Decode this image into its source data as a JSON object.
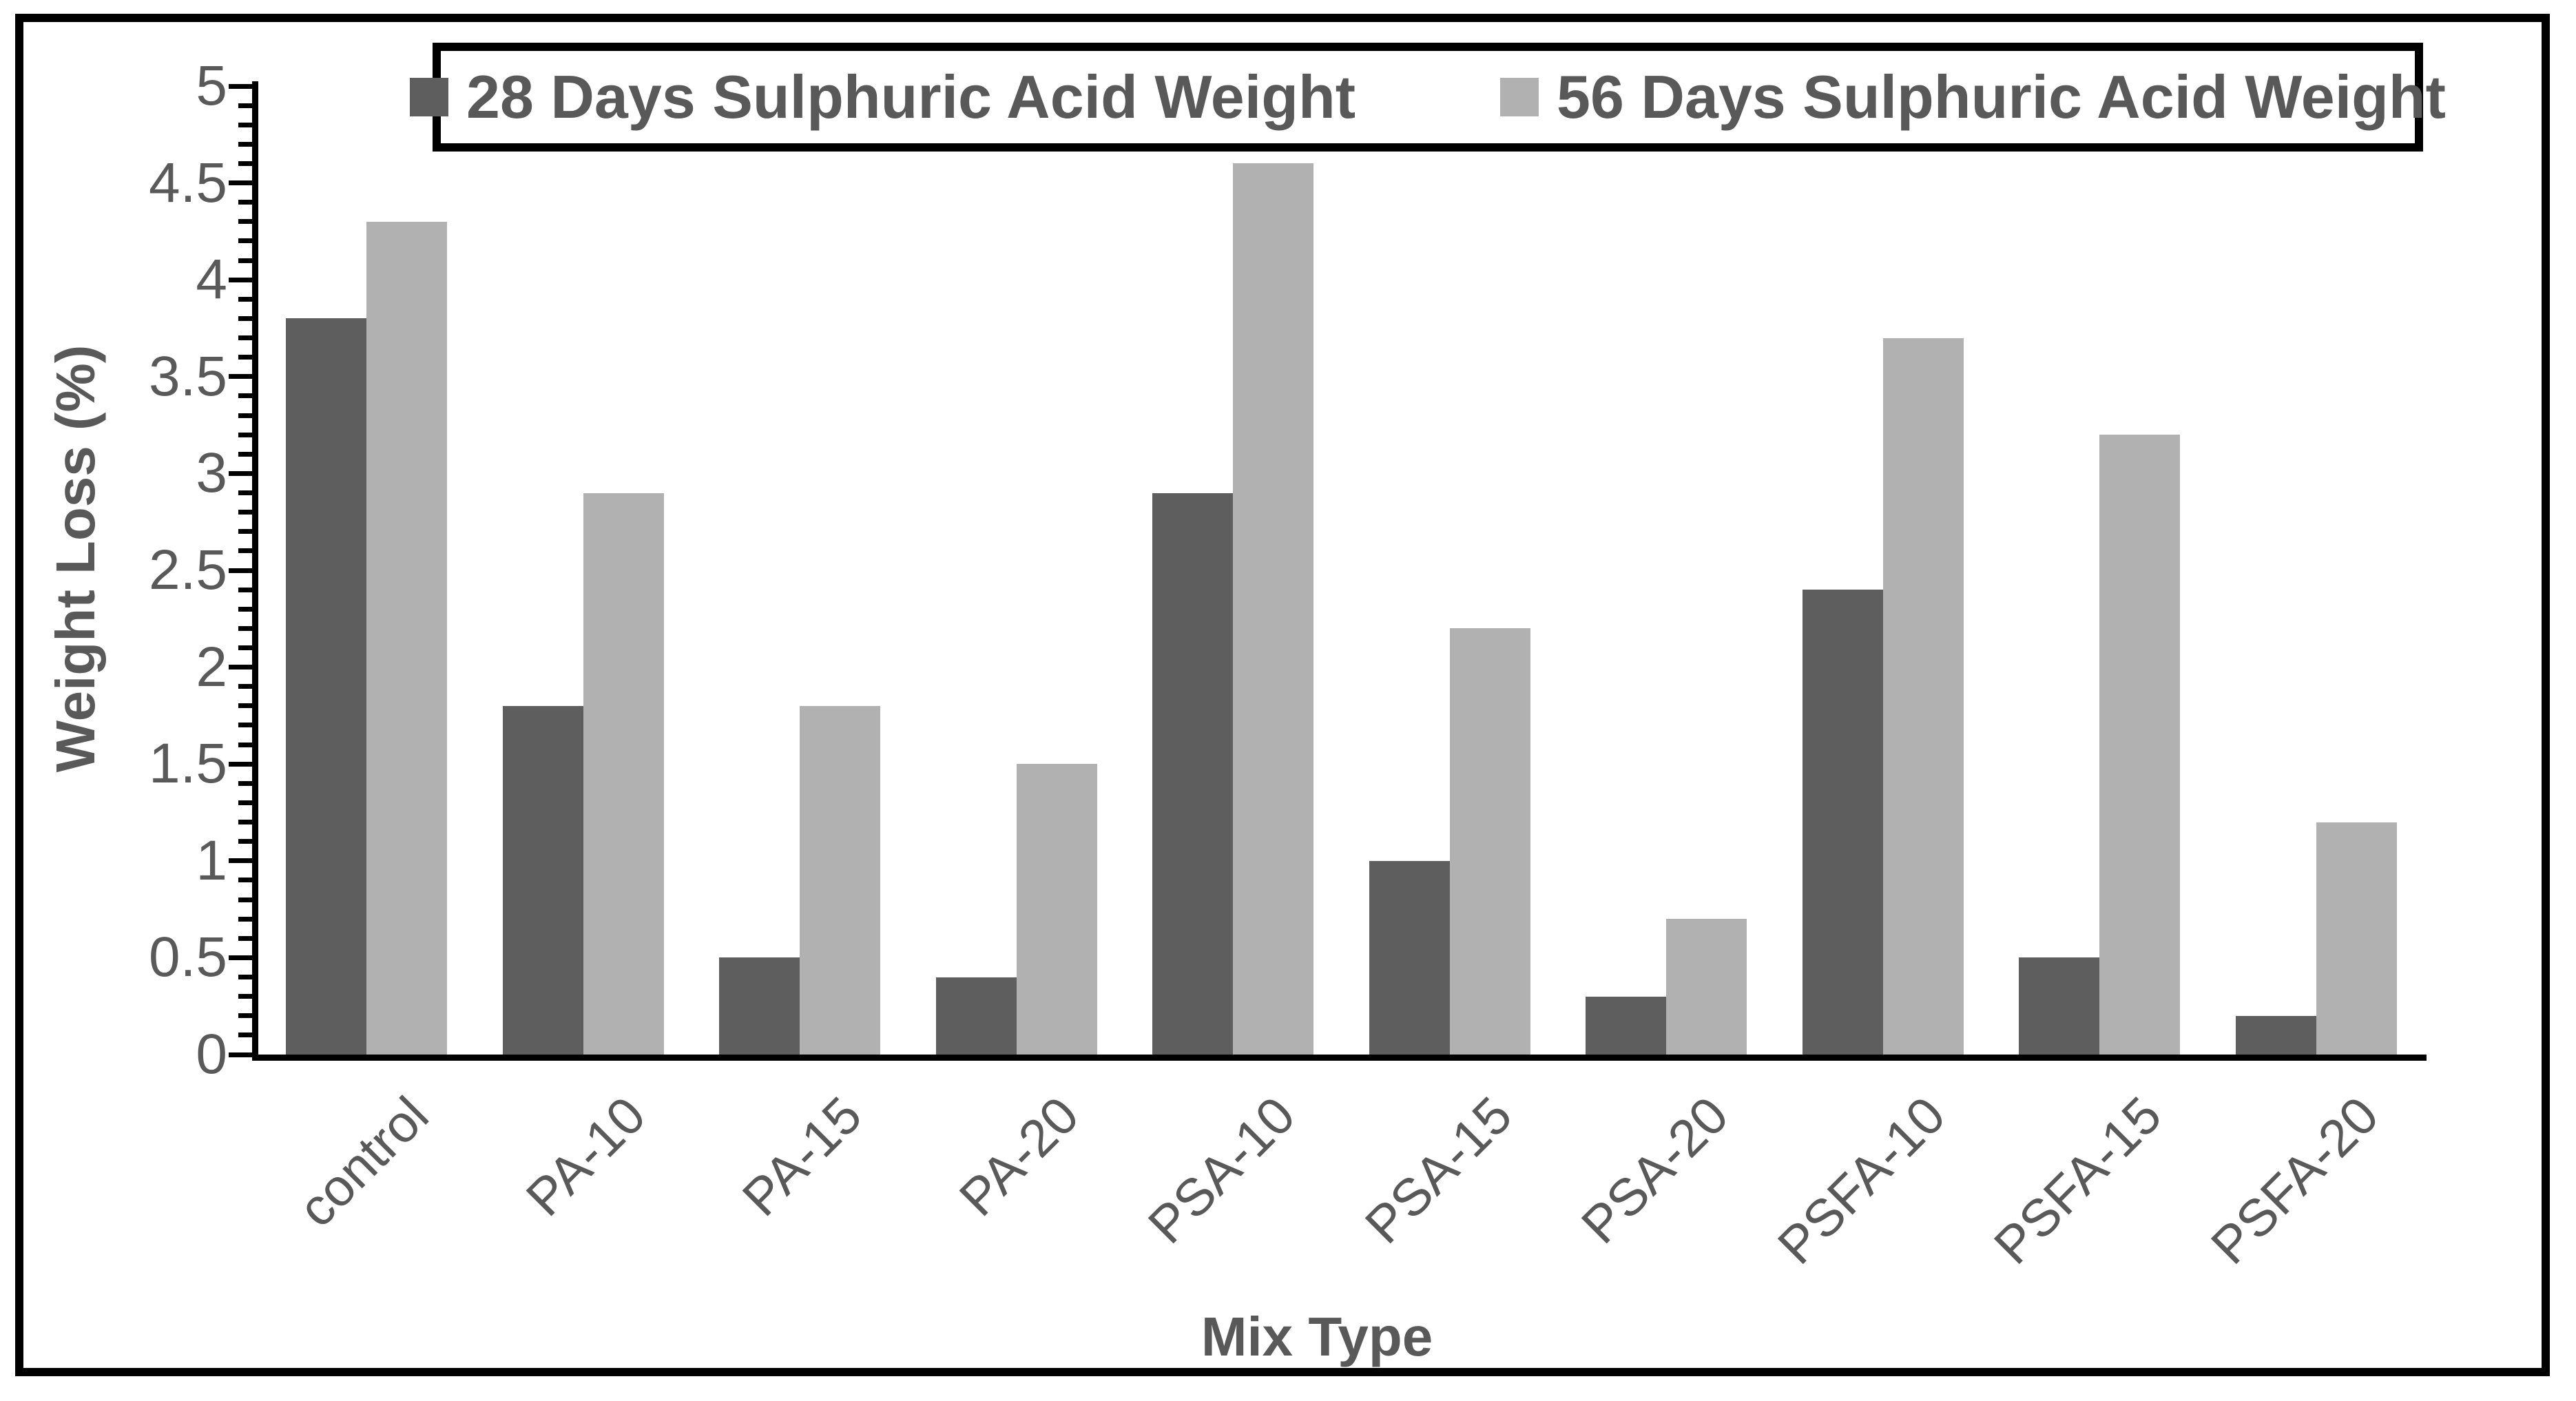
{
  "figure": {
    "background": "#ffffff",
    "border_color": "#000000"
  },
  "legend": {
    "position": "top",
    "items": [
      {
        "label": "28 Days Sulphuric Acid Weight",
        "color": "#5e5e5e"
      },
      {
        "label": "56 Days Sulphuric Acid Weight",
        "color": "#b1b1b1"
      }
    ]
  },
  "chart_data": {
    "type": "bar",
    "title": "",
    "categories": [
      "control",
      "PA-10",
      "PA-15",
      "PA-20",
      "PSA-10",
      "PSA-15",
      "PSA-20",
      "PSFA-10",
      "PSFA-15",
      "PSFA-20"
    ],
    "series": [
      {
        "name": "28 Days Sulphuric Acid Weight",
        "color": "#5e5e5e",
        "values": [
          3.8,
          1.8,
          0.5,
          0.4,
          2.9,
          1.0,
          0.3,
          2.4,
          0.5,
          0.2
        ]
      },
      {
        "name": "56 Days Sulphuric Acid Weight",
        "color": "#b1b1b1",
        "values": [
          4.3,
          2.9,
          1.8,
          1.5,
          4.6,
          2.2,
          0.7,
          3.7,
          3.2,
          1.2
        ]
      }
    ],
    "xlabel": "Mix Type",
    "ylabel": "Weight Loss (%)",
    "ylim": [
      0,
      5
    ],
    "ytick_step": 0.5,
    "minor_tick_step": 0.1,
    "yticklabels": [
      "0",
      "0.5",
      "1",
      "1.5",
      "2",
      "2.5",
      "3",
      "3.5",
      "4",
      "4.5",
      "5"
    ],
    "grid": false,
    "legend_position": "top",
    "bar_label_rotation_deg": -45,
    "text_color": "#595959",
    "axis_color": "#000000"
  }
}
